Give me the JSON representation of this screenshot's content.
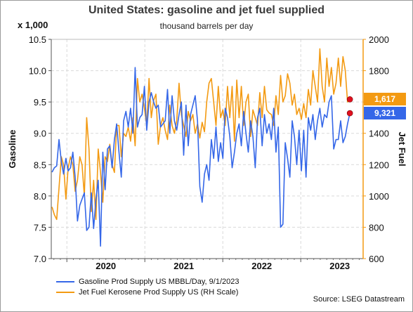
{
  "header": {
    "title": "United States: gasoline and jet fuel supplied",
    "subtitle": "thousand barrels per day",
    "unit_label": "x 1,000"
  },
  "colors": {
    "gasoline": "#3567e8",
    "jet": "#f39a12",
    "endpoint": "#e0101f",
    "axis_right": "#f39a12"
  },
  "legend": {
    "gasoline": "Gasoline Prod Supply US MBBL/Day, 9/1/2023",
    "jet": "Jet Fuel Kerosene Prod Supply US (RH Scale)"
  },
  "source": "Source: LSEG Datastream",
  "chart_data": {
    "type": "line",
    "title": "United States: gasoline and jet fuel supplied",
    "ylabel_left": "Gasoline",
    "ylabel_right": "Jet Fuel",
    "ylim_left": [
      7.0,
      10.5
    ],
    "ylim_right": [
      600,
      2000
    ],
    "yticks_left": [
      "7.0",
      "7.5",
      "8.0",
      "8.5",
      "9.0",
      "9.5",
      "10.0",
      "10.5"
    ],
    "yticks_right": [
      "600",
      "800",
      "1000",
      "1200",
      "1400",
      "1600",
      "1800",
      "2000"
    ],
    "xticks": [
      "2020",
      "2021",
      "2022",
      "2023"
    ],
    "x_range": [
      2019.8,
      2023.8
    ],
    "grid": true,
    "legend_position": "bottom-left",
    "series": [
      {
        "name": "Gasoline Prod Supply US MBBL/Day, 9/1/2023",
        "axis": "left",
        "last_value_label": "9,321",
        "values": [
          8.38,
          8.45,
          8.48,
          8.9,
          8.55,
          8.35,
          8.6,
          8.4,
          8.45,
          8.7,
          8.3,
          7.6,
          7.85,
          7.95,
          8.05,
          7.45,
          7.5,
          8.05,
          7.48,
          7.95,
          8.25,
          7.2,
          8.7,
          8.1,
          8.75,
          8.8,
          8.45,
          8.9,
          9.15,
          8.7,
          8.3,
          9.2,
          9.35,
          9.1,
          9.4,
          9.0,
          10.05,
          9.1,
          9.25,
          9.3,
          9.75,
          9.05,
          9.5,
          9.65,
          9.5,
          9.4,
          9.45,
          9.1,
          9.15,
          9.2,
          9.7,
          9.0,
          9.6,
          9.2,
          9.05,
          9.3,
          9.5,
          8.65,
          9.45,
          8.8,
          9.3,
          9.45,
          9.6,
          9.2,
          8.15,
          7.9,
          8.35,
          8.5,
          8.25,
          8.9,
          8.6,
          9.1,
          8.55,
          8.85,
          8.6,
          9.4,
          9.25,
          8.95,
          8.45,
          8.7,
          9.0,
          9.15,
          8.8,
          9.35,
          9.0,
          8.7,
          9.2,
          8.95,
          8.45,
          9.25,
          9.4,
          8.8,
          9.3,
          9.0,
          9.15,
          8.9,
          9.4,
          8.7,
          9.1,
          7.5,
          7.55,
          8.85,
          8.6,
          8.3,
          9.2,
          8.95,
          8.5,
          9.05,
          8.4,
          9.05,
          8.3,
          9.25,
          9.05,
          9.3,
          8.9,
          9.2,
          9.4,
          9.1,
          9.3,
          9.25,
          9.5,
          9.6,
          8.75,
          8.9,
          8.9,
          9.2,
          8.85,
          8.95,
          9.15,
          9.321
        ]
      },
      {
        "name": "Jet Fuel Kerosene Prod Supply US (RH Scale)",
        "axis": "right",
        "last_value_label": "1,617",
        "values": [
          930,
          880,
          850,
          1050,
          1250,
          1200,
          980,
          1180,
          1250,
          1200,
          1030,
          1100,
          1250,
          1200,
          1000,
          1500,
          1300,
          900,
          1100,
          850,
          1300,
          1150,
          960,
          1250,
          1220,
          1330,
          1200,
          1150,
          1450,
          1450,
          1250,
          1400,
          1380,
          1440,
          1350,
          1500,
          1320,
          1750,
          1600,
          1650,
          1560,
          1450,
          1750,
          1500,
          1610,
          1650,
          1330,
          1450,
          1500,
          1420,
          1360,
          1580,
          1450,
          1400,
          1480,
          1720,
          1520,
          1450,
          1380,
          1540,
          1480,
          1520,
          1400,
          1460,
          1370,
          1470,
          1410,
          1600,
          1720,
          1750,
          1600,
          1450,
          1700,
          1500,
          1550,
          1450,
          1700,
          1500,
          1700,
          1350,
          1740,
          1500,
          1700,
          1450,
          1600,
          1650,
          1380,
          1550,
          1500,
          1450,
          1660,
          1500,
          1700,
          1550,
          1530,
          1520,
          1450,
          1640,
          1520,
          1770,
          1600,
          1640,
          1780,
          1720,
          1580,
          1650,
          1520,
          1560,
          1490,
          1590,
          1500,
          1680,
          1580,
          1800,
          1700,
          1600,
          1940,
          1700,
          1600,
          1880,
          1700,
          1820,
          1650,
          1720,
          1880,
          1700,
          1890,
          1800,
          1600,
          1617
        ]
      }
    ]
  }
}
